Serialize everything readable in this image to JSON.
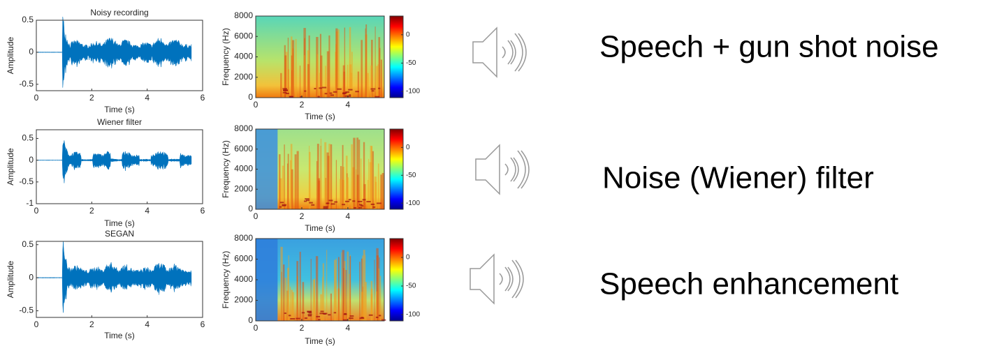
{
  "chart_data": [
    {
      "type": "line",
      "title": "Noisy recording",
      "xlabel": "Time (s)",
      "ylabel": "Amplitude",
      "color": "#0072bd",
      "xlim": [
        0,
        6
      ],
      "xticks": [
        0,
        2,
        4,
        6
      ],
      "ylim": [
        -0.6,
        0.5
      ],
      "yticks": [
        -0.5,
        0,
        0.5
      ]
    },
    {
      "type": "heatmap",
      "xlabel": "Time (s)",
      "ylabel": "Frequency (Hz)",
      "xlim": [
        0,
        5.58
      ],
      "xticks": [
        0,
        2,
        4
      ],
      "ylim": [
        0,
        8000
      ],
      "yticks": [
        0,
        2000,
        4000,
        6000,
        8000
      ],
      "clim": [
        -111,
        33
      ],
      "cticks": [
        -100,
        -50,
        0
      ]
    },
    {
      "type": "line",
      "title": "Wiener filter",
      "xlabel": "Time (s)",
      "ylabel": "Amplitude",
      "color": "#0072bd",
      "xlim": [
        0,
        6
      ],
      "xticks": [
        0,
        2,
        4,
        6
      ],
      "ylim": [
        -1,
        0.7
      ],
      "yticks": [
        -1,
        -0.5,
        0,
        0.5
      ]
    },
    {
      "type": "heatmap",
      "xlabel": "Time (s)",
      "ylabel": "Frequency (Hz)",
      "xlim": [
        0,
        5.58
      ],
      "xticks": [
        0,
        2,
        4
      ],
      "ylim": [
        0,
        8000
      ],
      "yticks": [
        0,
        2000,
        4000,
        6000,
        8000
      ],
      "clim": [
        -111,
        33
      ],
      "cticks": [
        -100,
        -50,
        0
      ]
    },
    {
      "type": "line",
      "title": "SEGAN",
      "xlabel": "Time (s)",
      "ylabel": "Amplitude",
      "color": "#0072bd",
      "xlim": [
        0,
        6
      ],
      "xticks": [
        0,
        2,
        4,
        6
      ],
      "ylim": [
        -0.6,
        0.55
      ],
      "yticks": [
        -0.5,
        0,
        0.5
      ]
    },
    {
      "type": "heatmap",
      "xlabel": "Time (s)",
      "ylabel": "Frequency (Hz)",
      "xlim": [
        0,
        5.58
      ],
      "xticks": [
        0,
        2,
        4
      ],
      "ylim": [
        0,
        8000
      ],
      "yticks": [
        0,
        2000,
        4000,
        6000,
        8000
      ],
      "clim": [
        -111,
        33
      ],
      "cticks": [
        -100,
        -50,
        0
      ]
    }
  ],
  "labels": [
    "Speech + gun shot noise",
    "Noise (Wiener) filter",
    "Speech enhancement"
  ]
}
